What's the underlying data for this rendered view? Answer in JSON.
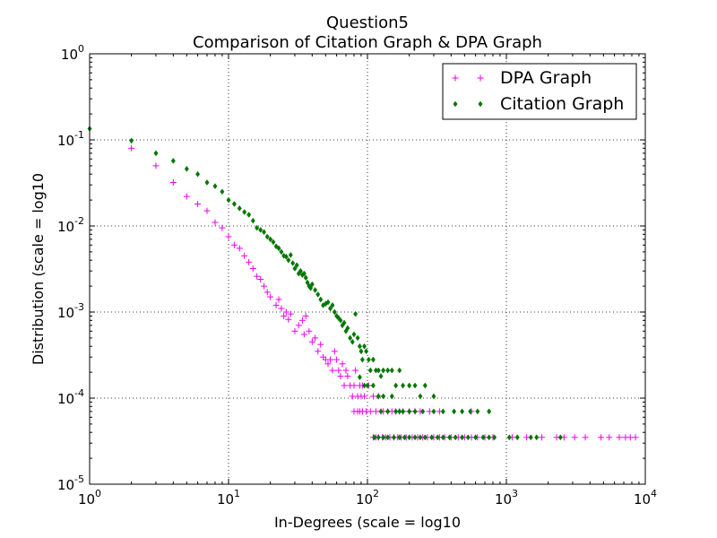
{
  "chart_data": {
    "type": "scatter",
    "title": "Question5",
    "subtitle": "Comparison of Citation Graph & DPA Graph",
    "xlabel": "In-Degrees (scale = log10",
    "ylabel": "Distribution (scale = log10",
    "xscale": "log",
    "yscale": "log",
    "xlim": [
      1,
      10000
    ],
    "ylim": [
      1e-05,
      1
    ],
    "x_ticks": [
      {
        "base": "10",
        "exp": "0",
        "value": 1
      },
      {
        "base": "10",
        "exp": "1",
        "value": 10
      },
      {
        "base": "10",
        "exp": "2",
        "value": 100
      },
      {
        "base": "10",
        "exp": "3",
        "value": 1000
      },
      {
        "base": "10",
        "exp": "4",
        "value": 10000
      }
    ],
    "y_ticks": [
      {
        "base": "10",
        "exp": "0",
        "value": 1
      },
      {
        "base": "10",
        "exp": "-1",
        "value": 0.1
      },
      {
        "base": "10",
        "exp": "-2",
        "value": 0.01
      },
      {
        "base": "10",
        "exp": "-3",
        "value": 0.001
      },
      {
        "base": "10",
        "exp": "-4",
        "value": 0.0001
      },
      {
        "base": "10",
        "exp": "-5",
        "value": 1e-05
      }
    ],
    "grid": true,
    "legend_position": "top-right",
    "series": [
      {
        "name": "DPA Graph",
        "marker": "plus",
        "color": "#ee00ee",
        "points": [
          [
            2,
            0.08
          ],
          [
            3,
            0.05
          ],
          [
            4,
            0.032
          ],
          [
            5,
            0.022
          ],
          [
            6,
            0.018
          ],
          [
            7,
            0.015
          ],
          [
            8,
            0.011
          ],
          [
            9,
            0.0095
          ],
          [
            10,
            0.0075
          ],
          [
            11,
            0.006
          ],
          [
            12,
            0.0055
          ],
          [
            13,
            0.0045
          ],
          [
            14,
            0.0038
          ],
          [
            15,
            0.0032
          ],
          [
            16,
            0.0026
          ],
          [
            17,
            0.0024
          ],
          [
            18,
            0.002
          ],
          [
            19,
            0.0017
          ],
          [
            20,
            0.0015
          ],
          [
            22,
            0.0012
          ],
          [
            23,
            0.0014
          ],
          [
            24,
            0.0011
          ],
          [
            25,
            0.0009
          ],
          [
            26,
            0.001
          ],
          [
            27,
            0.00082
          ],
          [
            28,
            0.00095
          ],
          [
            30,
            0.0006
          ],
          [
            32,
            0.0007
          ],
          [
            34,
            0.0008
          ],
          [
            35,
            0.00055
          ],
          [
            36,
            0.0009
          ],
          [
            38,
            0.0006
          ],
          [
            40,
            0.00045
          ],
          [
            42,
            0.0005
          ],
          [
            44,
            0.00035
          ],
          [
            46,
            0.00042
          ],
          [
            48,
            0.0003
          ],
          [
            50,
            0.00028
          ],
          [
            52,
            0.00025
          ],
          [
            54,
            0.00028
          ],
          [
            56,
            0.00021
          ],
          [
            58,
            0.00035
          ],
          [
            60,
            0.00028
          ],
          [
            62,
            0.00021
          ],
          [
            64,
            0.00018
          ],
          [
            66,
            0.00025
          ],
          [
            68,
            0.00014
          ],
          [
            70,
            0.00021
          ],
          [
            72,
            0.00018
          ],
          [
            75,
            0.00014
          ],
          [
            78,
            0.000105
          ],
          [
            80,
            0.00014
          ],
          [
            82,
            0.00021
          ],
          [
            85,
            0.000105
          ],
          [
            88,
            0.00014
          ],
          [
            90,
            0.000105
          ],
          [
            92,
            0.00014
          ],
          [
            95,
            0.000105
          ],
          [
            98,
            7e-05
          ],
          [
            102,
            0.00014
          ],
          [
            105,
            7e-05
          ],
          [
            110,
            0.000105
          ],
          [
            115,
            7e-05
          ],
          [
            120,
            0.000105
          ],
          [
            125,
            7e-05
          ],
          [
            130,
            7e-05
          ],
          [
            140,
            7e-05
          ],
          [
            150,
            7e-05
          ],
          [
            160,
            7e-05
          ],
          [
            170,
            7e-05
          ],
          [
            180,
            7e-05
          ],
          [
            200,
            7e-05
          ],
          [
            220,
            7e-05
          ],
          [
            240,
            7e-05
          ],
          [
            280,
            7e-05
          ],
          [
            330,
            7e-05
          ],
          [
            560,
            7e-05
          ],
          [
            80,
            7e-05
          ],
          [
            85,
            7e-05
          ],
          [
            88,
            7e-05
          ],
          [
            92,
            7e-05
          ],
          [
            110,
            3.5e-05
          ],
          [
            115,
            3.5e-05
          ],
          [
            120,
            3.5e-05
          ],
          [
            128,
            3.5e-05
          ],
          [
            135,
            3.5e-05
          ],
          [
            145,
            3.5e-05
          ],
          [
            155,
            3.5e-05
          ],
          [
            165,
            3.5e-05
          ],
          [
            175,
            3.5e-05
          ],
          [
            190,
            3.5e-05
          ],
          [
            210,
            3.5e-05
          ],
          [
            230,
            3.5e-05
          ],
          [
            250,
            3.5e-05
          ],
          [
            270,
            3.5e-05
          ],
          [
            300,
            3.5e-05
          ],
          [
            330,
            3.5e-05
          ],
          [
            360,
            3.5e-05
          ],
          [
            400,
            3.5e-05
          ],
          [
            450,
            3.5e-05
          ],
          [
            500,
            3.5e-05
          ],
          [
            560,
            3.5e-05
          ],
          [
            620,
            3.5e-05
          ],
          [
            700,
            3.5e-05
          ],
          [
            800,
            3.5e-05
          ],
          [
            1100,
            3.5e-05
          ],
          [
            1400,
            3.5e-05
          ],
          [
            1800,
            3.5e-05
          ],
          [
            2300,
            3.5e-05
          ],
          [
            2600,
            3.5e-05
          ],
          [
            3100,
            3.5e-05
          ],
          [
            3700,
            3.5e-05
          ],
          [
            4800,
            3.5e-05
          ],
          [
            5500,
            3.5e-05
          ],
          [
            6500,
            3.5e-05
          ],
          [
            7200,
            3.5e-05
          ],
          [
            7800,
            3.5e-05
          ],
          [
            8500,
            3.5e-05
          ]
        ]
      },
      {
        "name": "Citation Graph",
        "marker": "diamond",
        "color": "#007700",
        "points": [
          [
            1,
            0.135
          ],
          [
            2,
            0.098
          ],
          [
            3,
            0.07
          ],
          [
            4,
            0.057
          ],
          [
            5,
            0.046
          ],
          [
            6,
            0.04
          ],
          [
            7,
            0.032
          ],
          [
            8,
            0.029
          ],
          [
            9,
            0.025
          ],
          [
            10,
            0.02
          ],
          [
            11,
            0.018
          ],
          [
            12,
            0.016
          ],
          [
            13,
            0.0145
          ],
          [
            14,
            0.0135
          ],
          [
            15,
            0.0115
          ],
          [
            16,
            0.0095
          ],
          [
            17,
            0.009
          ],
          [
            18,
            0.0085
          ],
          [
            19,
            0.0075
          ],
          [
            20,
            0.007
          ],
          [
            21,
            0.0065
          ],
          [
            22,
            0.0058
          ],
          [
            23,
            0.0055
          ],
          [
            24,
            0.005
          ],
          [
            25,
            0.0045
          ],
          [
            26,
            0.0044
          ],
          [
            27,
            0.004
          ],
          [
            28,
            0.0046
          ],
          [
            29,
            0.0037
          ],
          [
            30,
            0.0032
          ],
          [
            31,
            0.0035
          ],
          [
            32,
            0.0028
          ],
          [
            33,
            0.003
          ],
          [
            34,
            0.0027
          ],
          [
            35,
            0.0028
          ],
          [
            36,
            0.0025
          ],
          [
            37,
            0.0022
          ],
          [
            38,
            0.002
          ],
          [
            39,
            0.0019
          ],
          [
            40,
            0.0021
          ],
          [
            42,
            0.0018
          ],
          [
            44,
            0.0016
          ],
          [
            46,
            0.0014
          ],
          [
            48,
            0.0012
          ],
          [
            50,
            0.00125
          ],
          [
            52,
            0.0013
          ],
          [
            54,
            0.0011
          ],
          [
            56,
            0.0012
          ],
          [
            58,
            0.001
          ],
          [
            60,
            0.0009
          ],
          [
            62,
            0.00085
          ],
          [
            64,
            0.0008
          ],
          [
            66,
            0.0007
          ],
          [
            68,
            0.00075
          ],
          [
            70,
            0.0006
          ],
          [
            72,
            0.00065
          ],
          [
            75,
            0.0005
          ],
          [
            78,
            0.00045
          ],
          [
            80,
            0.00055
          ],
          [
            82,
            0.00095
          ],
          [
            85,
            0.0005
          ],
          [
            88,
            0.0004
          ],
          [
            90,
            0.00035
          ],
          [
            92,
            0.00028
          ],
          [
            95,
            0.0004
          ],
          [
            98,
            0.00035
          ],
          [
            102,
            0.00028
          ],
          [
            105,
            0.00021
          ],
          [
            110,
            0.00028
          ],
          [
            115,
            0.00021
          ],
          [
            120,
            0.00021
          ],
          [
            125,
            0.00018
          ],
          [
            130,
            0.00021
          ],
          [
            140,
            0.00021
          ],
          [
            150,
            0.00021
          ],
          [
            160,
            0.00014
          ],
          [
            170,
            0.00021
          ],
          [
            180,
            0.00014
          ],
          [
            200,
            0.00014
          ],
          [
            220,
            0.00014
          ],
          [
            240,
            0.000105
          ],
          [
            260,
            0.00014
          ],
          [
            300,
            0.000105
          ],
          [
            88,
            0.000175
          ],
          [
            95,
            0.00014
          ],
          [
            100,
            0.00014
          ],
          [
            110,
            0.00014
          ],
          [
            120,
            0.000105
          ],
          [
            125,
            7e-05
          ],
          [
            130,
            0.000105
          ],
          [
            140,
            7e-05
          ],
          [
            150,
            0.000105
          ],
          [
            160,
            7e-05
          ],
          [
            170,
            7e-05
          ],
          [
            180,
            7e-05
          ],
          [
            200,
            7e-05
          ],
          [
            220,
            7e-05
          ],
          [
            250,
            7e-05
          ],
          [
            300,
            7e-05
          ],
          [
            350,
            7e-05
          ],
          [
            420,
            7e-05
          ],
          [
            480,
            7e-05
          ],
          [
            550,
            7e-05
          ],
          [
            620,
            7e-05
          ],
          [
            750,
            7e-05
          ],
          [
            112,
            3.5e-05
          ],
          [
            120,
            3.5e-05
          ],
          [
            130,
            3.5e-05
          ],
          [
            140,
            3.5e-05
          ],
          [
            155,
            3.5e-05
          ],
          [
            170,
            3.5e-05
          ],
          [
            185,
            3.5e-05
          ],
          [
            200,
            3.5e-05
          ],
          [
            220,
            3.5e-05
          ],
          [
            240,
            3.5e-05
          ],
          [
            260,
            3.5e-05
          ],
          [
            290,
            3.5e-05
          ],
          [
            320,
            3.5e-05
          ],
          [
            350,
            3.5e-05
          ],
          [
            390,
            3.5e-05
          ],
          [
            430,
            3.5e-05
          ],
          [
            480,
            3.5e-05
          ],
          [
            530,
            3.5e-05
          ],
          [
            600,
            3.5e-05
          ],
          [
            680,
            3.5e-05
          ],
          [
            750,
            3.5e-05
          ],
          [
            820,
            3.5e-05
          ],
          [
            1050,
            3.5e-05
          ],
          [
            1200,
            3.5e-05
          ],
          [
            1500,
            3.5e-05
          ],
          [
            1650,
            3.5e-05
          ],
          [
            2450,
            3.5e-05
          ]
        ]
      }
    ]
  }
}
